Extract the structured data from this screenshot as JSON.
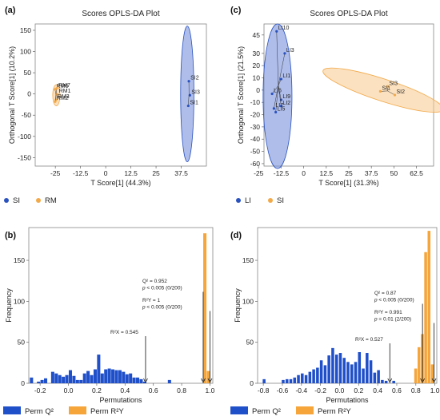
{
  "colors": {
    "blue": "#2a52be",
    "blue_fill": "#6d86d8",
    "orange": "#f2a94a",
    "orange_fill": "#f7c98a",
    "bar_blue": "#1f4fc9",
    "bar_orange": "#f5a53a"
  },
  "chart_data": [
    {
      "panel": "(a)",
      "type": "scatter",
      "title": "Scores OPLS-DA Plot",
      "xlabel": "T Score[1] (44.3%)",
      "ylabel": "Orthogonal T Score[1] (10.2%)",
      "xlim": [
        -35,
        50
      ],
      "ylim": [
        -170,
        165
      ],
      "xticks": [
        -25,
        -12.5,
        0,
        12.5,
        25,
        37.5
      ],
      "xtick_labels": [
        "-25",
        "-12.5",
        "0",
        "12.5",
        "25",
        "37.5"
      ],
      "yticks": [
        -150,
        -100,
        -50,
        0,
        50,
        100,
        150
      ],
      "grid": false,
      "legend_position": "bottom-left",
      "series": [
        {
          "name": "SI",
          "color": "blue",
          "ellipse": {
            "cx": 40.5,
            "cy": 0,
            "rx": 3.3,
            "ry": 160
          },
          "points": [
            {
              "label": "SI2",
              "x": 41.3,
              "y": 30
            },
            {
              "label": "SI3",
              "x": 41.8,
              "y": -3
            },
            {
              "label": "SI1",
              "x": 41.0,
              "y": -28
            }
          ]
        },
        {
          "name": "RM",
          "color": "orange",
          "ellipse": {
            "cx": -24.5,
            "cy": -3,
            "rx": 1.8,
            "ry": 25
          },
          "points": [
            {
              "label": "RM6",
              "x": -25.2,
              "y": 11
            },
            {
              "label": "RM7",
              "x": -24.3,
              "y": 13
            },
            {
              "label": "RM1",
              "x": -24.0,
              "y": -1
            },
            {
              "label": "RM3",
              "x": -24.7,
              "y": -14
            },
            {
              "label": "RM2",
              "x": -25.1,
              "y": -18
            }
          ]
        }
      ]
    },
    {
      "panel": "(c)",
      "type": "scatter",
      "title": "Scores OPLS-DA Plot",
      "xlabel": "T Score[1] (31.3%)",
      "ylabel": "Orthogonal T Score[1] (21.5%)",
      "xlim": [
        -22,
        72
      ],
      "ylim": [
        -62,
        54
      ],
      "xticks": [
        -25,
        -12.5,
        0,
        12.5,
        25,
        37.5,
        50,
        62.5
      ],
      "xtick_labels": [
        "-25",
        "-12.5",
        "0",
        "12.5",
        "25",
        "37.5",
        "50",
        "62.5"
      ],
      "yticks": [
        -60,
        -50,
        -40,
        -30,
        -20,
        -10,
        0,
        10,
        20,
        30,
        45
      ],
      "grid": false,
      "legend_position": "bottom-left",
      "series": [
        {
          "name": "LI",
          "color": "blue",
          "ellipse": {
            "cx": -14.5,
            "cy": -5,
            "rx": 8,
            "ry": 59
          },
          "points": [
            {
              "label": "LI10",
              "x": -15.0,
              "y": 48
            },
            {
              "label": "LI3",
              "x": -10.5,
              "y": 30
            },
            {
              "label": "LI1",
              "x": -12.5,
              "y": 9
            },
            {
              "label": "LI6",
              "x": -17.5,
              "y": -3
            },
            {
              "label": "LI9",
              "x": -12.5,
              "y": -8
            },
            {
              "label": "LI2",
              "x": -12.5,
              "y": -13
            },
            {
              "label": "LI7",
              "x": -16.5,
              "y": -15
            },
            {
              "label": "LI5",
              "x": -15.5,
              "y": -18
            }
          ]
        },
        {
          "name": "SI",
          "color": "orange",
          "ellipse": {
            "cx": 44,
            "cy": 0,
            "rx": 35,
            "ry": 9,
            "angle": 18
          },
          "points": [
            {
              "label": "SI3",
              "x": 46.5,
              "y": 3
            },
            {
              "label": "SI1",
              "x": 42.5,
              "y": -1
            },
            {
              "label": "SI2",
              "x": 50.5,
              "y": -4
            }
          ]
        }
      ]
    },
    {
      "panel": "(b)",
      "type": "bar",
      "title": "",
      "xlabel": "Permutations",
      "ylabel": "Frequency",
      "xlim": [
        -0.28,
        1.02
      ],
      "ylim": [
        0,
        190
      ],
      "xticks": [
        -0.2,
        0,
        0.2,
        0.4,
        0.6,
        0.8,
        1.0
      ],
      "xtick_labels": [
        "-0.2",
        "0.0",
        "0.2",
        "0.4",
        "0.6",
        "0.8",
        "1.0"
      ],
      "yticks": [
        0,
        50,
        100,
        150
      ],
      "bin_width": 0.025,
      "grid": false,
      "legend_position": "bottom-left",
      "series": [
        {
          "name": "Perm Q²",
          "color": "bar_blue",
          "bins": [
            {
              "x": -0.26,
              "y": 7
            },
            {
              "x": -0.21,
              "y": 2
            },
            {
              "x": -0.185,
              "y": 4
            },
            {
              "x": -0.16,
              "y": 6
            },
            {
              "x": -0.11,
              "y": 14
            },
            {
              "x": -0.085,
              "y": 12
            },
            {
              "x": -0.06,
              "y": 10
            },
            {
              "x": -0.035,
              "y": 8
            },
            {
              "x": -0.01,
              "y": 10
            },
            {
              "x": 0.015,
              "y": 16
            },
            {
              "x": 0.04,
              "y": 9
            },
            {
              "x": 0.065,
              "y": 4
            },
            {
              "x": 0.09,
              "y": 4
            },
            {
              "x": 0.115,
              "y": 12
            },
            {
              "x": 0.14,
              "y": 15
            },
            {
              "x": 0.165,
              "y": 10
            },
            {
              "x": 0.19,
              "y": 17
            },
            {
              "x": 0.215,
              "y": 35
            },
            {
              "x": 0.24,
              "y": 12
            },
            {
              "x": 0.265,
              "y": 17
            },
            {
              "x": 0.29,
              "y": 18
            },
            {
              "x": 0.315,
              "y": 17
            },
            {
              "x": 0.34,
              "y": 16
            },
            {
              "x": 0.365,
              "y": 16
            },
            {
              "x": 0.39,
              "y": 14
            },
            {
              "x": 0.415,
              "y": 11
            },
            {
              "x": 0.44,
              "y": 12
            },
            {
              "x": 0.465,
              "y": 7
            },
            {
              "x": 0.49,
              "y": 7
            },
            {
              "x": 0.515,
              "y": 5
            },
            {
              "x": 0.54,
              "y": 2
            },
            {
              "x": 0.715,
              "y": 4
            }
          ]
        },
        {
          "name": "Perm R²Y",
          "color": "bar_orange",
          "bins": [
            {
              "x": 0.965,
              "y": 183
            },
            {
              "x": 0.99,
              "y": 15
            }
          ]
        }
      ],
      "annotations": [
        {
          "lines": [
            "Q² = 0.952",
            "p < 0.005 (0/200)"
          ],
          "arrow_x": 0.952
        },
        {
          "lines": [
            "R²Y = 1",
            "p < 0.005 (0/200)"
          ],
          "arrow_x": 1.0
        },
        {
          "lines": [
            "R²X = 0.545"
          ],
          "arrow_x": 0.545
        }
      ]
    },
    {
      "panel": "(d)",
      "type": "bar",
      "title": "",
      "xlabel": "Permutations",
      "ylabel": "Frequency",
      "xlim": [
        -0.86,
        1.02
      ],
      "ylim": [
        0,
        190
      ],
      "xticks": [
        -0.8,
        -0.6,
        -0.4,
        -0.2,
        0,
        0.2,
        0.4,
        0.6,
        0.8,
        1.0
      ],
      "xtick_labels": [
        "-0.8",
        "-0.6",
        "-0.4",
        "-0.2",
        "0.0",
        "0.2",
        "0.4",
        "0.6",
        "0.8",
        "1.0"
      ],
      "yticks": [
        0,
        50,
        100,
        150
      ],
      "bin_width": 0.033,
      "grid": false,
      "legend_position": "bottom-left",
      "series": [
        {
          "name": "Perm Q²",
          "color": "bar_blue",
          "bins": [
            {
              "x": -0.79,
              "y": 5
            },
            {
              "x": -0.59,
              "y": 4
            },
            {
              "x": -0.55,
              "y": 5
            },
            {
              "x": -0.51,
              "y": 5
            },
            {
              "x": -0.47,
              "y": 7
            },
            {
              "x": -0.43,
              "y": 10
            },
            {
              "x": -0.39,
              "y": 12
            },
            {
              "x": -0.35,
              "y": 10
            },
            {
              "x": -0.31,
              "y": 14
            },
            {
              "x": -0.27,
              "y": 17
            },
            {
              "x": -0.23,
              "y": 19
            },
            {
              "x": -0.19,
              "y": 28
            },
            {
              "x": -0.15,
              "y": 22
            },
            {
              "x": -0.11,
              "y": 34
            },
            {
              "x": -0.07,
              "y": 43
            },
            {
              "x": -0.03,
              "y": 35
            },
            {
              "x": 0.01,
              "y": 37
            },
            {
              "x": 0.05,
              "y": 31
            },
            {
              "x": 0.09,
              "y": 26
            },
            {
              "x": 0.13,
              "y": 23
            },
            {
              "x": 0.17,
              "y": 26
            },
            {
              "x": 0.21,
              "y": 38
            },
            {
              "x": 0.25,
              "y": 18
            },
            {
              "x": 0.29,
              "y": 37
            },
            {
              "x": 0.33,
              "y": 28
            },
            {
              "x": 0.37,
              "y": 13
            },
            {
              "x": 0.41,
              "y": 16
            },
            {
              "x": 0.45,
              "y": 4
            },
            {
              "x": 0.49,
              "y": 3
            },
            {
              "x": 0.57,
              "y": 3
            }
          ]
        },
        {
          "name": "Perm R²Y",
          "color": "bar_orange",
          "bins": [
            {
              "x": 0.8,
              "y": 18
            },
            {
              "x": 0.835,
              "y": 44
            },
            {
              "x": 0.87,
              "y": 60
            },
            {
              "x": 0.905,
              "y": 160
            },
            {
              "x": 0.94,
              "y": 186
            },
            {
              "x": 0.975,
              "y": 23
            }
          ]
        }
      ],
      "annotations": [
        {
          "lines": [
            "Q² = 0.87",
            "p < 0.005 (0/200)"
          ],
          "arrow_x": 0.87
        },
        {
          "lines": [
            "R²Y = 0.991",
            "p = 0.01 (2/200)"
          ],
          "arrow_x": 0.991
        },
        {
          "lines": [
            "R²X = 0.527"
          ],
          "arrow_x": 0.527
        }
      ]
    }
  ]
}
